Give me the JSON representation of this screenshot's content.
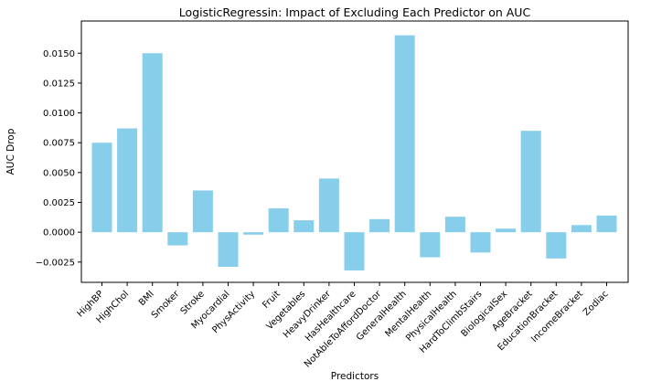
{
  "chart_data": {
    "type": "bar",
    "title": "LogisticRegressin: Impact of Excluding Each Predictor on AUC",
    "xlabel": "Predictors",
    "ylabel": "AUC Drop",
    "bar_color": "#87ceeb",
    "grid": false,
    "ylim": [
      -0.0042,
      0.0177
    ],
    "yticks": [
      -0.0025,
      0.0,
      0.0025,
      0.005,
      0.0075,
      0.01,
      0.0125,
      0.015
    ],
    "ytick_labels": [
      "−0.0025",
      "0.0000",
      "0.0025",
      "0.0050",
      "0.0075",
      "0.0100",
      "0.0125",
      "0.0150"
    ],
    "categories": [
      "HighBP",
      "HighChol",
      "BMI",
      "Smoker",
      "Stroke",
      "Myocardial",
      "PhysActivity",
      "Fruit",
      "Vegetables",
      "HeavyDrinker",
      "HasHealthcare",
      "NotAbleToAffordDoctor",
      "GeneralHealth",
      "MentalHealth",
      "PhysicalHealth",
      "HardToClimbStairs",
      "BiologicalSex",
      "AgeBracket",
      "EducationBracket",
      "IncomeBracket",
      "Zodiac"
    ],
    "values": [
      0.0075,
      0.0087,
      0.015,
      -0.0011,
      0.0035,
      -0.0029,
      -0.0002,
      0.002,
      0.001,
      0.0045,
      -0.0032,
      0.0011,
      0.0165,
      -0.0021,
      0.0013,
      -0.0017,
      0.0003,
      0.0085,
      -0.0022,
      0.0006,
      0.0014
    ]
  }
}
